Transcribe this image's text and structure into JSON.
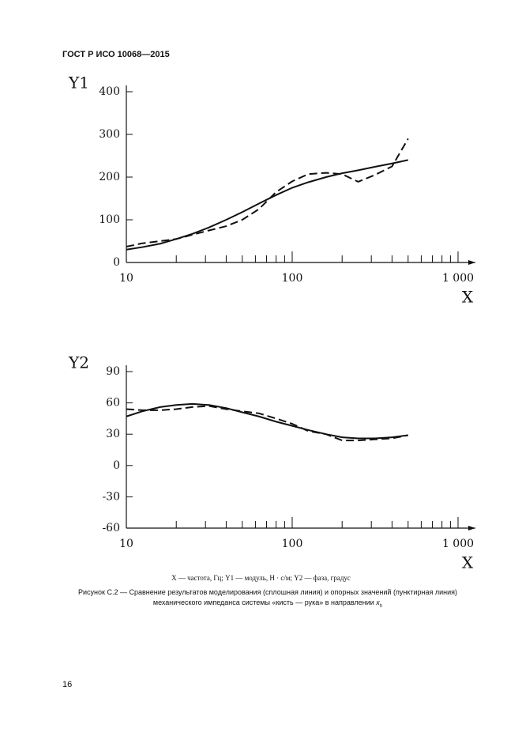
{
  "header": "ГОСТ Р ИСО 10068—2015",
  "chart_data": [
    {
      "type": "line",
      "ylabel": "Y1",
      "xlabel": "X",
      "xscale": "log",
      "xlim": [
        10,
        1000
      ],
      "xticks": [
        10,
        100,
        {
          "value": 1000,
          "label": "1 000"
        }
      ],
      "xminorticks": [
        20,
        30,
        40,
        50,
        60,
        70,
        80,
        90,
        200,
        300,
        400,
        500,
        600,
        700,
        800,
        900
      ],
      "ylim": [
        0,
        400
      ],
      "yticks": [
        0,
        100,
        200,
        300,
        400
      ],
      "x": [
        10,
        12.5,
        16,
        20,
        25,
        31.5,
        40,
        50,
        63,
        80,
        100,
        125,
        160,
        200,
        250,
        315,
        400,
        500
      ],
      "series": [
        {
          "color": "#111",
          "line_style": "solid",
          "values": [
            30,
            36,
            44,
            55,
            67,
            82,
            100,
            118,
            138,
            158,
            175,
            188,
            200,
            209,
            216,
            224,
            232,
            240
          ]
        },
        {
          "color": "#111",
          "line_style": "dashed",
          "values": [
            37,
            45,
            50,
            55,
            65,
            75,
            85,
            100,
            125,
            165,
            190,
            207,
            210,
            207,
            189,
            205,
            225,
            290
          ]
        }
      ]
    },
    {
      "type": "line",
      "ylabel": "Y2",
      "xlabel": "X",
      "xscale": "log",
      "xlim": [
        10,
        1000
      ],
      "xticks": [
        10,
        100,
        {
          "value": 1000,
          "label": "1 000"
        }
      ],
      "xminorticks": [
        20,
        30,
        40,
        50,
        60,
        70,
        80,
        90,
        200,
        300,
        400,
        500,
        600,
        700,
        800,
        900
      ],
      "ylim": [
        -60,
        90
      ],
      "yticks": [
        -60,
        -30,
        0,
        30,
        60,
        90
      ],
      "x": [
        10,
        12.5,
        16,
        20,
        25,
        31.5,
        40,
        50,
        63,
        80,
        100,
        125,
        160,
        200,
        250,
        315,
        400,
        500
      ],
      "series": [
        {
          "color": "#111",
          "line_style": "solid",
          "values": [
            47,
            52,
            56,
            58,
            59,
            58,
            55,
            51,
            47,
            42,
            38,
            34,
            30,
            27,
            26,
            26,
            27,
            29
          ]
        },
        {
          "color": "#111",
          "line_style": "dashed",
          "values": [
            54,
            53,
            53,
            54,
            56,
            57,
            54,
            52,
            50,
            45,
            40,
            33,
            30,
            24,
            24,
            25,
            26,
            29
          ]
        }
      ]
    }
  ],
  "legend_text": "X — частота, Гц; Y1 — модуль, Н · с/м; Y2 — фаза, градус",
  "caption": {
    "text": "Рисунок С.2 — Сравнение результатов моделирования (сплошная линия) и опорных значений (пунктирная линия) механического импеданса системы «кисть — рука» в направлении ",
    "var": "x",
    "sub": "h"
  },
  "page_number": "16"
}
